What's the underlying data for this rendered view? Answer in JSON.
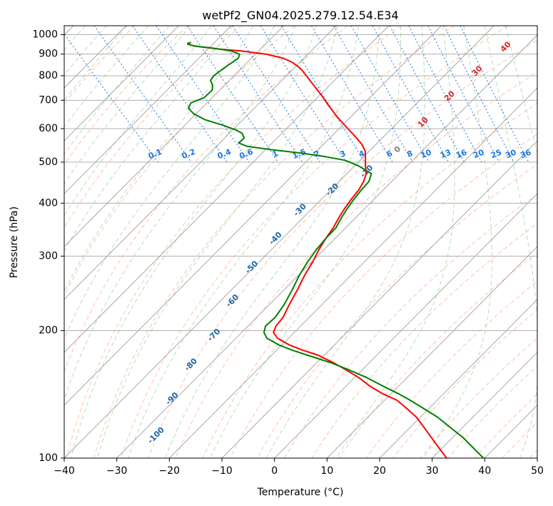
{
  "chart_data": {
    "type": "skew-t",
    "title": "wetPf2_GN04.2025.279.12.54.E34",
    "xlabel": "Temperature (°C)",
    "ylabel": "Pressure (hPa)",
    "xlim": [
      -40,
      50
    ],
    "ylim": [
      1050,
      100
    ],
    "y_scale": "log",
    "x_ticks": [
      "−40",
      "−30",
      "−20",
      "−10",
      "0",
      "10",
      "20",
      "30",
      "40",
      "50"
    ],
    "y_ticks": [
      "1000",
      "900",
      "800",
      "700",
      "600",
      "500",
      "400",
      "300",
      "200",
      "100"
    ],
    "grid": true,
    "colors": {
      "temperature": "#ff0000",
      "dewpoint": "#008000",
      "isotherms": "#a0a0a0",
      "dry_adiabats": "#ff9a70",
      "moist_adiabats": "#7fbf7f",
      "mixing_ratio": "#1f77e0",
      "labels_blue": "#1f66a8",
      "labels_red": "#d62728"
    },
    "isotherm_labels": [
      {
        "text": "-100",
        "T": -100,
        "p": 113
      },
      {
        "text": "-90",
        "T": -90,
        "p": 138
      },
      {
        "text": "-80",
        "T": -80,
        "p": 166
      },
      {
        "text": "-70",
        "T": -70,
        "p": 195
      },
      {
        "text": "-60",
        "T": -60,
        "p": 235
      },
      {
        "text": "-50",
        "T": -50,
        "p": 282
      },
      {
        "text": "-40",
        "T": -40,
        "p": 330
      },
      {
        "text": "-30",
        "T": -30,
        "p": 385
      },
      {
        "text": "-20",
        "T": -20,
        "p": 430
      },
      {
        "text": "-10",
        "T": -10,
        "p": 475
      },
      {
        "text": "0",
        "T": 0,
        "p": 535
      },
      {
        "text": "10",
        "T": 10,
        "p": 620
      },
      {
        "text": "20",
        "T": 20,
        "p": 715
      },
      {
        "text": "30",
        "T": 30,
        "p": 820
      },
      {
        "text": "40",
        "T": 40,
        "p": 935
      }
    ],
    "mixing_ratio_labels": [
      {
        "text": "0.1",
        "w": 0.1
      },
      {
        "text": "0.2",
        "w": 0.2
      },
      {
        "text": "0.4",
        "w": 0.4
      },
      {
        "text": "0.6",
        "w": 0.6
      },
      {
        "text": "1",
        "w": 1
      },
      {
        "text": "1.5",
        "w": 1.5
      },
      {
        "text": "2",
        "w": 2
      },
      {
        "text": "3",
        "w": 3
      },
      {
        "text": "4",
        "w": 4
      },
      {
        "text": "6",
        "w": 6
      },
      {
        "text": "8",
        "w": 8
      },
      {
        "text": "10",
        "w": 10
      },
      {
        "text": "13",
        "w": 13
      },
      {
        "text": "16",
        "w": 16
      },
      {
        "text": "20",
        "w": 20
      },
      {
        "text": "25",
        "w": 25
      },
      {
        "text": "30",
        "w": 30
      },
      {
        "text": "36",
        "w": 36
      }
    ],
    "series": [
      {
        "role": "temperature",
        "p": [
          960,
          950,
          940,
          925,
          915,
          900,
          880,
          860,
          840,
          820,
          790,
          760,
          720,
          680,
          640,
          600,
          570,
          550,
          530,
          510,
          490,
          470,
          450,
          430,
          410,
          390,
          370,
          350,
          330,
          310,
          290,
          270,
          250,
          230,
          215,
          205,
          198,
          192,
          185,
          180,
          175,
          168,
          162,
          155,
          148,
          142,
          137,
          131,
          125,
          118,
          112,
          106,
          100
        ],
        "T": [
          -19.5,
          -20.0,
          -19.0,
          -15.0,
          -11.0,
          -7.0,
          -4.5,
          -3.5,
          -3.2,
          -3.2,
          -3.5,
          -3.8,
          -4.2,
          -4.8,
          -5.3,
          -5.5,
          -5.6,
          -5.8,
          -6.5,
          -7.8,
          -9.2,
          -10.5,
          -12.5,
          -15.0,
          -18.0,
          -21.0,
          -24.0,
          -27.0,
          -30.5,
          -34.0,
          -37.5,
          -41.5,
          -45.5,
          -50.0,
          -53.5,
          -56.5,
          -58.2,
          -58.5,
          -57.5,
          -56.0,
          -54.0,
          -52.5,
          -51.5,
          -50.5,
          -50.0,
          -49.0,
          -47.5,
          -47.2,
          -47.0,
          -47.5,
          -48.0,
          -48.5,
          -49.0
        ]
      },
      {
        "role": "dewpoint",
        "p": [
          960,
          950,
          940,
          930,
          915,
          900,
          880,
          860,
          840,
          820,
          800,
          780,
          760,
          740,
          710,
          690,
          670,
          650,
          630,
          610,
          595,
          585,
          570,
          555,
          545,
          535,
          525,
          515,
          505,
          490,
          470,
          450,
          430,
          410,
          390,
          370,
          350,
          330,
          310,
          290,
          270,
          250,
          230,
          215,
          205,
          198,
          192,
          185,
          180,
          175,
          168,
          162,
          155,
          148,
          142,
          137,
          131,
          125,
          118,
          112,
          106,
          100
        ],
        "T": [
          -19.0,
          -20.0,
          -19.0,
          -16.0,
          -13.0,
          -12.0,
          -13.0,
          -15.0,
          -17.0,
          -19.0,
          -21.0,
          -22.5,
          -23.0,
          -24.0,
          -27.0,
          -30.5,
          -32.0,
          -32.0,
          -31.0,
          -28.5,
          -27.0,
          -26.5,
          -27.0,
          -29.0,
          -28.0,
          -24.0,
          -19.0,
          -15.0,
          -12.0,
          -10.5,
          -9.5,
          -11.5,
          -14.5,
          -17.5,
          -20.5,
          -23.5,
          -26.5,
          -30.5,
          -34.5,
          -38.5,
          -42.5,
          -46.5,
          -51.0,
          -55.0,
          -58.5,
          -60.0,
          -60.5,
          -59.5,
          -58.0,
          -56.0,
          -53.0,
          -51.0,
          -49.0,
          -47.5,
          -46.0,
          -45.0,
          -44.0,
          -43.0,
          -42.5,
          -42.0,
          -42.0,
          -42.0
        ]
      }
    ]
  }
}
